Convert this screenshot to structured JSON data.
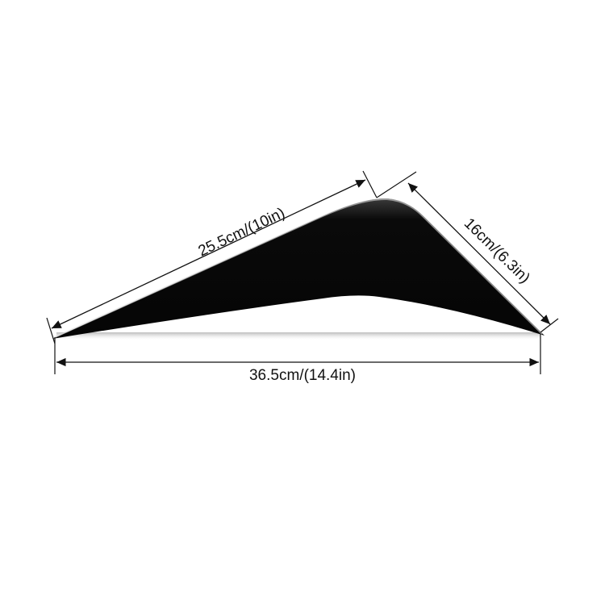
{
  "product": {
    "color": "#0a0a0a",
    "dimensions": {
      "top_edge": "25.5cm/(10in)",
      "right_edge": "16cm/(6.3in)",
      "bottom_length": "36.5cm/(14.4in)"
    }
  }
}
